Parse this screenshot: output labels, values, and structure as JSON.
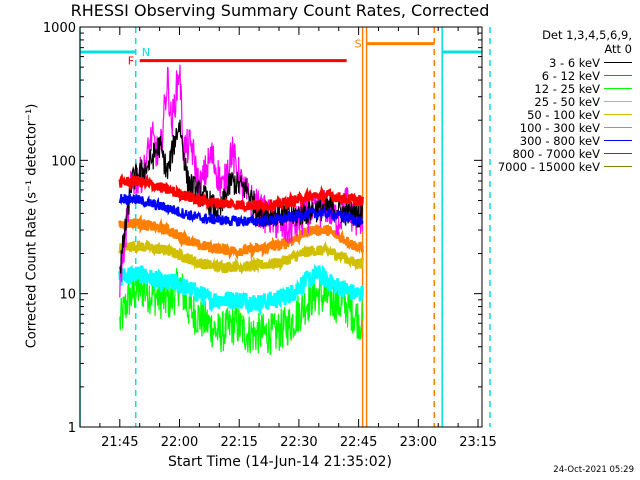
{
  "chart_data": {
    "type": "line",
    "title": "RHESSI Observing Summary Count Rates, Corrected",
    "xlabel": "Start Time (14-Jun-14 21:35:02)",
    "ylabel": "Corrected Count Rate (s⁻¹ detector⁻¹)",
    "y_scale": "log",
    "ylim": [
      1,
      1000
    ],
    "y_ticks": [
      "1",
      "10",
      "100",
      "1000"
    ],
    "xlim": [
      "21:35",
      "23:16"
    ],
    "x_ticks": [
      "21:45",
      "22:00",
      "22:15",
      "22:30",
      "22:45",
      "23:00",
      "23:15"
    ],
    "grid": false,
    "legend_placement": "right",
    "legend_header": [
      "Det 1,3,4,5,6,9,",
      "Att 0"
    ],
    "series": [
      {
        "name": "3 - 6 keV",
        "color": "#000000",
        "x": [
          "21:45",
          "21:48",
          "21:52",
          "21:55",
          "21:57",
          "21:59",
          "22:00",
          "22:02",
          "22:04",
          "22:07",
          "22:10",
          "22:13",
          "22:17",
          "22:20",
          "22:24",
          "22:28",
          "22:33",
          "22:38",
          "22:42",
          "22:44",
          "22:46"
        ],
        "y": [
          15,
          70,
          90,
          130,
          80,
          150,
          190,
          70,
          60,
          50,
          40,
          70,
          60,
          40,
          40,
          38,
          42,
          45,
          40,
          40,
          38
        ]
      },
      {
        "name": "6 - 12 keV",
        "color": "#ff00ff",
        "x": [
          "21:45",
          "21:48",
          "21:51",
          "21:53",
          "21:55",
          "21:57",
          "21:58",
          "22:00",
          "22:01",
          "22:03",
          "22:05",
          "22:08",
          "22:11",
          "22:13",
          "22:16",
          "22:18",
          "22:21",
          "22:24",
          "22:27",
          "22:30",
          "22:33",
          "22:37",
          "22:40",
          "22:42",
          "22:44",
          "22:46"
        ],
        "y": [
          12,
          70,
          80,
          150,
          100,
          420,
          180,
          500,
          120,
          130,
          60,
          110,
          60,
          120,
          60,
          50,
          40,
          35,
          30,
          35,
          40,
          45,
          35,
          50,
          35,
          38
        ]
      },
      {
        "name": "12 - 25 keV",
        "color": "#00ff00",
        "x": [
          "21:45",
          "21:47",
          "21:50",
          "21:53",
          "21:56",
          "21:58",
          "22:00",
          "22:02",
          "22:04",
          "22:07",
          "22:10",
          "22:14",
          "22:17",
          "22:20",
          "22:24",
          "22:28",
          "22:31",
          "22:34",
          "22:38",
          "22:42",
          "22:44",
          "22:46"
        ],
        "y": [
          6,
          9,
          11,
          10,
          9,
          9,
          12,
          8,
          7,
          6,
          5,
          6,
          5,
          5,
          5,
          6,
          8,
          10,
          9,
          8,
          7,
          6
        ]
      },
      {
        "name": "25 - 50 keV",
        "color": "#00ffff",
        "x": [
          "21:45",
          "21:47",
          "21:50",
          "21:53",
          "21:56",
          "21:59",
          "22:02",
          "22:05",
          "22:08",
          "22:12",
          "22:16",
          "22:20",
          "22:24",
          "22:28",
          "22:31",
          "22:35",
          "22:38",
          "22:41",
          "22:44",
          "22:46"
        ],
        "y": [
          13,
          14,
          14,
          13,
          12,
          12,
          11,
          10,
          9,
          9,
          9,
          8.5,
          9,
          10,
          12,
          14,
          12,
          11,
          10,
          10
        ]
      },
      {
        "name": "50 - 100 keV",
        "color": "#d0c000",
        "x": [
          "21:45",
          "21:49",
          "21:53",
          "21:57",
          "22:01",
          "22:05",
          "22:09",
          "22:13",
          "22:17",
          "22:21",
          "22:25",
          "22:29",
          "22:33",
          "22:37",
          "22:41",
          "22:44",
          "22:46"
        ],
        "y": [
          22,
          23,
          22,
          21,
          19,
          17,
          16,
          16,
          16,
          16.5,
          17,
          19,
          21,
          21,
          19,
          17,
          17
        ]
      },
      {
        "name": "100 - 300 keV",
        "color": "#ff8000",
        "x": [
          "21:45",
          "21:49",
          "21:53",
          "21:57",
          "22:01",
          "22:05",
          "22:09",
          "22:13",
          "22:17",
          "22:21",
          "22:25",
          "22:29",
          "22:33",
          "22:37",
          "22:41",
          "22:44",
          "22:46"
        ],
        "y": [
          33,
          34,
          32,
          30,
          26,
          23,
          22,
          21,
          21,
          22,
          23,
          26,
          30,
          30,
          26,
          23,
          22
        ]
      },
      {
        "name": "300 - 800 keV",
        "color": "#0000ff",
        "x": [
          "21:45",
          "21:49",
          "21:53",
          "21:57",
          "22:01",
          "22:05",
          "22:09",
          "22:13",
          "22:17",
          "22:21",
          "22:25",
          "22:29",
          "22:33",
          "22:37",
          "22:41",
          "22:44",
          "22:46"
        ],
        "y": [
          52,
          51,
          47,
          44,
          40,
          37,
          36,
          35,
          35,
          35,
          36,
          38,
          40,
          40,
          38,
          36,
          35
        ]
      },
      {
        "name": "800 - 7000 keV",
        "color": "#ff0000",
        "x": [
          "21:45",
          "21:49",
          "21:53",
          "21:57",
          "22:01",
          "22:05",
          "22:09",
          "22:13",
          "22:17",
          "22:21",
          "22:25",
          "22:29",
          "22:33",
          "22:37",
          "22:41",
          "22:44",
          "22:46"
        ],
        "y": [
          68,
          70,
          66,
          60,
          55,
          50,
          48,
          47,
          46,
          46,
          47,
          50,
          54,
          55,
          52,
          50,
          49
        ]
      },
      {
        "name": "7000 - 15000 keV",
        "color": "#808000",
        "x": [],
        "y": []
      }
    ],
    "annotations": [
      {
        "label": "N",
        "color": "#00e0e0"
      },
      {
        "label": "F",
        "color": "#ff0000"
      },
      {
        "label": "S",
        "color": "#ff8000"
      }
    ],
    "flag_bars": [
      {
        "name": "night",
        "color": "#00e0e0",
        "level": 650,
        "start": "21:35",
        "end": "21:49"
      },
      {
        "name": "night",
        "color": "#00e0e0",
        "level": 650,
        "start": "23:06",
        "end": "23:20"
      },
      {
        "name": "flare",
        "color": "#ff0000",
        "label": "F",
        "level": 560,
        "start": "21:50",
        "end": "22:42"
      },
      {
        "name": "saa",
        "color": "#ff8000",
        "label": "S",
        "level": 750,
        "start": "22:47",
        "end": "23:04"
      }
    ],
    "vertical_markers": [
      {
        "time": "21:35",
        "color": "#00e0e0",
        "style": "solid"
      },
      {
        "time": "21:49",
        "color": "#00e0e0",
        "style": "dashed"
      },
      {
        "time": "22:46",
        "color": "#ff8000",
        "style": "solid"
      },
      {
        "time": "22:47",
        "color": "#ff8000",
        "style": "solid"
      },
      {
        "time": "23:04",
        "color": "#ff8000",
        "style": "dashed"
      },
      {
        "time": "23:06",
        "color": "#00e0e0",
        "style": "solid"
      },
      {
        "time": "23:18",
        "color": "#00e0e0",
        "style": "dashed"
      }
    ],
    "data_start": "21:45",
    "data_end": "22:46"
  },
  "timestamp": "24-Oct-2021 05:29"
}
